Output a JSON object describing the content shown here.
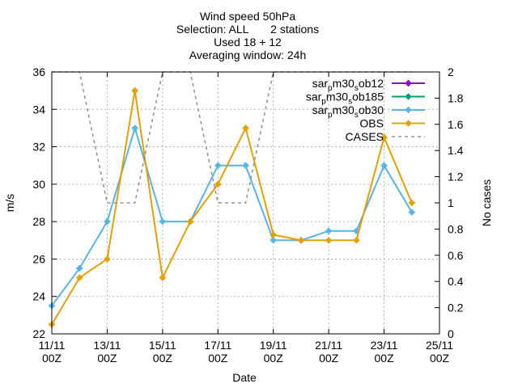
{
  "chart_data": {
    "type": "line",
    "title_lines": [
      "Wind speed 50hPa",
      "Selection: ALL       2 stations",
      "Used 18 + 12",
      "Averaging window: 24h"
    ],
    "xlabel": "Date",
    "ylabel": "m/s",
    "y2label": "No cases",
    "x_ticks": [
      {
        "day": 11,
        "line1": "11/11",
        "line2": "00Z"
      },
      {
        "day": 13,
        "line1": "13/11",
        "line2": "00Z"
      },
      {
        "day": 15,
        "line1": "15/11",
        "line2": "00Z"
      },
      {
        "day": 17,
        "line1": "17/11",
        "line2": "00Z"
      },
      {
        "day": 19,
        "line1": "19/11",
        "line2": "00Z"
      },
      {
        "day": 21,
        "line1": "21/11",
        "line2": "00Z"
      },
      {
        "day": 23,
        "line1": "23/11",
        "line2": "00Z"
      },
      {
        "day": 25,
        "line1": "25/11",
        "line2": "00Z"
      }
    ],
    "xlim": [
      11,
      25
    ],
    "ylim": [
      22,
      36
    ],
    "y_ticks": [
      22,
      24,
      26,
      28,
      30,
      32,
      34,
      36
    ],
    "y2lim": [
      0,
      2
    ],
    "y2_ticks": [
      "0",
      "0.2",
      "0.4",
      "0.6",
      "0.8",
      "1",
      "1.2",
      "1.4",
      "1.6",
      "1.8",
      "2"
    ],
    "grid": true,
    "legend_position": "top-right",
    "series": [
      {
        "name_parts": [
          "sar",
          "p",
          "m30",
          "s",
          "ob12"
        ],
        "color": "#9400d3",
        "axis": "y1",
        "dash": false,
        "x": [],
        "y": []
      },
      {
        "name_parts": [
          "sar",
          "p",
          "m30",
          "s",
          "ob185"
        ],
        "color": "#009e73",
        "axis": "y1",
        "dash": false,
        "x": [],
        "y": []
      },
      {
        "name_parts": [
          "sar",
          "p",
          "m30",
          "s",
          "ob30"
        ],
        "color": "#56b4e9",
        "axis": "y1",
        "dash": false,
        "x": [
          11,
          12,
          13,
          14,
          15,
          16,
          17,
          18,
          19,
          20,
          21,
          22,
          23,
          24
        ],
        "y": [
          23.5,
          25.5,
          28,
          33,
          28,
          28,
          31,
          31,
          27,
          27,
          27.5,
          27.5,
          31,
          28.5
        ]
      },
      {
        "name": "OBS",
        "color": "#e69f00",
        "axis": "y1",
        "dash": false,
        "x": [
          11,
          12,
          13,
          14,
          15,
          16,
          17,
          18,
          19,
          20,
          21,
          22,
          23,
          24
        ],
        "y": [
          22.5,
          25,
          26,
          35,
          25,
          28,
          30,
          33,
          27.3,
          27,
          27,
          27,
          32.5,
          29
        ]
      },
      {
        "name": "CASES",
        "color": "#909090",
        "axis": "y2",
        "dash": true,
        "x": [
          11,
          12,
          13,
          14,
          15,
          16,
          17,
          18,
          19,
          20,
          21,
          22,
          23,
          24
        ],
        "y": [
          2,
          2,
          1,
          1,
          2,
          2,
          1,
          1,
          2,
          2,
          2,
          2,
          2,
          2
        ]
      }
    ]
  }
}
